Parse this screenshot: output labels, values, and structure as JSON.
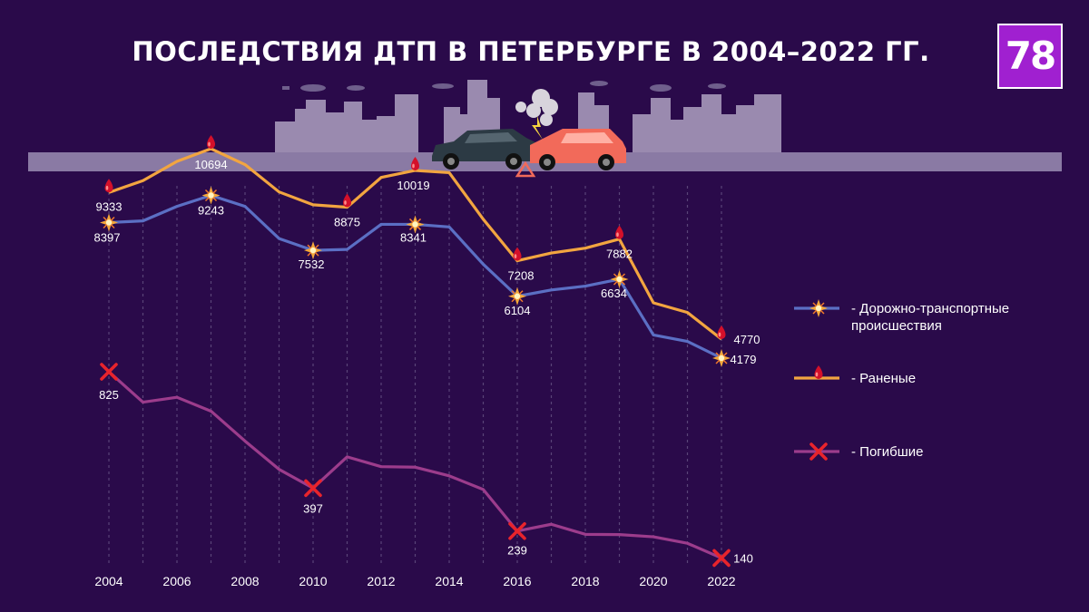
{
  "title": "ПОСЛЕДСТВИЯ ДТП В ПЕТЕРБУРГЕ В 2004–2022 ГГ.",
  "logo_text": "78",
  "colors": {
    "background": "#2a0a4a",
    "accidents": "#5b6fc4",
    "injured": "#f2a540",
    "deaths": "#9c3c8c",
    "marker_blood": "#d4102a",
    "marker_cross": "#e8242c",
    "road": "#8a7aa4",
    "buildings": "#9a8aaf",
    "logo": "#a020d0"
  },
  "chart_data": {
    "type": "line",
    "x": [
      2004,
      2005,
      2006,
      2007,
      2008,
      2009,
      2010,
      2011,
      2012,
      2013,
      2014,
      2015,
      2016,
      2017,
      2018,
      2019,
      2020,
      2021,
      2022
    ],
    "x_ticks": [
      "2004",
      "2006",
      "2008",
      "2010",
      "2012",
      "2014",
      "2016",
      "2018",
      "2020",
      "2022"
    ],
    "grid": "vertical dashed lines at each year",
    "series": [
      {
        "key": "accidents",
        "name": "- Дорожно-транспортные происшествия",
        "legend_lines": [
          "- Дорожно-транспортные",
          "происшествия"
        ],
        "marker": "spark-icon",
        "values": [
          8397,
          8450,
          8900,
          9243,
          8900,
          7900,
          7532,
          7560,
          8341,
          8341,
          8260,
          7100,
          6104,
          6300,
          6420,
          6634,
          4900,
          4700,
          4179
        ],
        "labels": [
          {
            "year": 2004,
            "text": "8397"
          },
          {
            "year": 2007,
            "text": "9243"
          },
          {
            "year": 2010,
            "text": "7532"
          },
          {
            "year": 2013,
            "text": "8341"
          },
          {
            "year": 2016,
            "text": "6104"
          },
          {
            "year": 2019,
            "text": "6634"
          },
          {
            "year": 2022,
            "text": "4179"
          }
        ]
      },
      {
        "key": "injured",
        "name": "- Раненые",
        "legend_lines": [
          "- Раненые"
        ],
        "marker": "blood-drop-icon",
        "values": [
          9333,
          9700,
          10300,
          10694,
          10200,
          9350,
          8950,
          8875,
          9800,
          10019,
          9950,
          8500,
          7208,
          7450,
          7600,
          7882,
          5900,
          5600,
          4770
        ],
        "labels": [
          {
            "year": 2004,
            "text": "9333"
          },
          {
            "year": 2007,
            "text": "10694"
          },
          {
            "year": 2011,
            "text": "8875"
          },
          {
            "year": 2013,
            "text": "10019"
          },
          {
            "year": 2016,
            "text": "7208"
          },
          {
            "year": 2019,
            "text": "7882"
          },
          {
            "year": 2022,
            "text": "4770"
          }
        ]
      },
      {
        "key": "deaths",
        "name": "- Погибшие",
        "legend_lines": [
          "- Погибшие"
        ],
        "marker": "cross-icon",
        "values": [
          825,
          713,
          731,
          680,
          570,
          466,
          397,
          512,
          476,
          474,
          442,
          392,
          239,
          264,
          227,
          226,
          218,
          194,
          140
        ],
        "labels": [
          {
            "year": 2004,
            "text": "825"
          },
          {
            "year": 2010,
            "text": "397"
          },
          {
            "year": 2016,
            "text": "239"
          },
          {
            "year": 2022,
            "text": "140"
          }
        ]
      }
    ]
  }
}
